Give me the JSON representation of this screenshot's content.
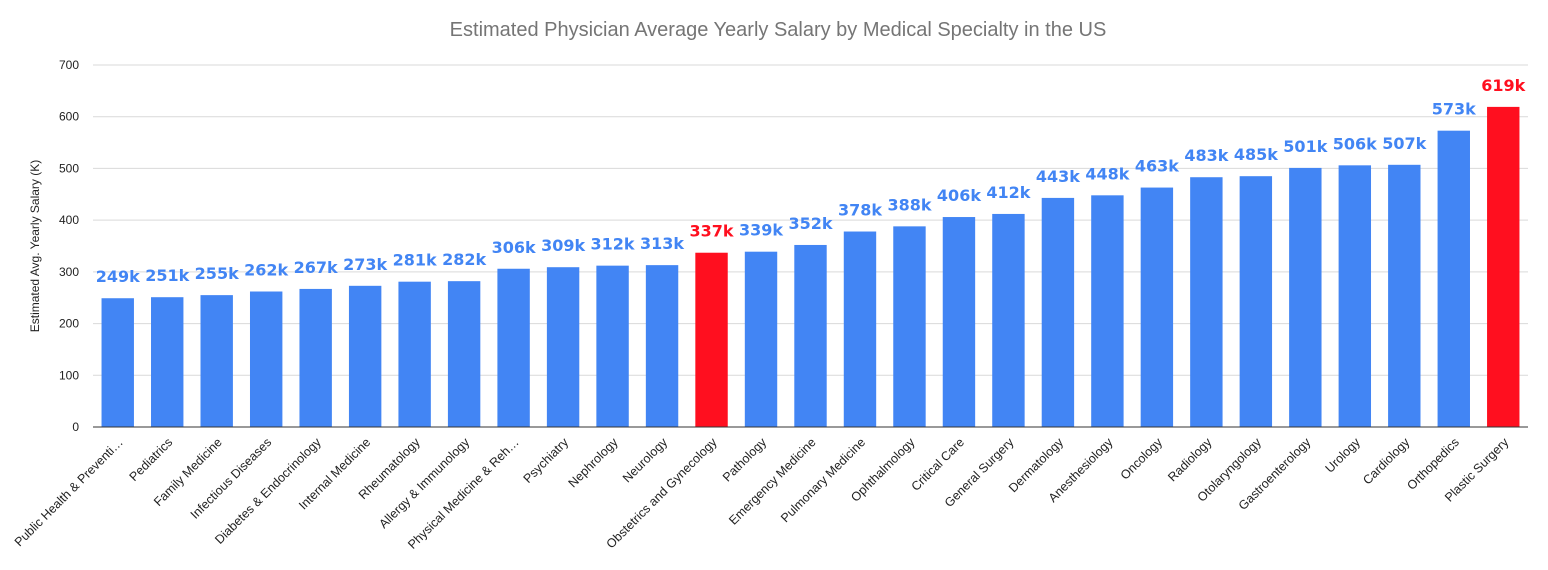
{
  "chart_data": {
    "type": "bar",
    "title": "Estimated Physician Average Yearly Salary by Medical Specialty in the US",
    "xlabel": "",
    "ylabel": "Estimated Avg. Yearly Salary (K)",
    "ylim": [
      0,
      700
    ],
    "yticks": [
      0,
      100,
      200,
      300,
      400,
      500,
      600,
      700
    ],
    "grid": true,
    "legend": "none",
    "colors": {
      "default": "#4285F4",
      "highlight": "#FF0F1F",
      "default_label": "#4285F4",
      "highlight_label": "#FF0F1F"
    },
    "categories": [
      "Public Health & Preventi…",
      "Pediatrics",
      "Family Medicine",
      "Infectious Diseases",
      "Diabetes & Endocrinology",
      "Internal Medicine",
      "Rheumatology",
      "Allergy & Immunology",
      "Physical Medicine & Reh…",
      "Psychiatry",
      "Nephrology",
      "Neurology",
      "Obstetrics and Gynecology",
      "Pathology",
      "Emergency Medicine",
      "Pulmonary Medicine",
      "Ophthalmology",
      "Critical Care",
      "General Surgery",
      "Dermatology",
      "Anesthesiology",
      "Oncology",
      "Radiology",
      "Otolaryngology",
      "Gastroenterology",
      "Urology",
      "Cardiology",
      "Orthopedics",
      "Plastic Surgery"
    ],
    "values": [
      249,
      251,
      255,
      262,
      267,
      273,
      281,
      282,
      306,
      309,
      312,
      313,
      337,
      339,
      352,
      378,
      388,
      406,
      412,
      443,
      448,
      463,
      483,
      485,
      501,
      506,
      507,
      573,
      619
    ],
    "data_labels": [
      "249k",
      "251k",
      "255k",
      "262k",
      "267k",
      "273k",
      "281k",
      "282k",
      "306k",
      "309k",
      "312k",
      "313k",
      "337k",
      "339k",
      "352k",
      "378k",
      "388k",
      "406k",
      "412k",
      "443k",
      "448k",
      "463k",
      "483k",
      "485k",
      "501k",
      "506k",
      "507k",
      "573k",
      "619k"
    ],
    "highlighted": [
      "Obstetrics and Gynecology",
      "Plastic Surgery"
    ]
  }
}
